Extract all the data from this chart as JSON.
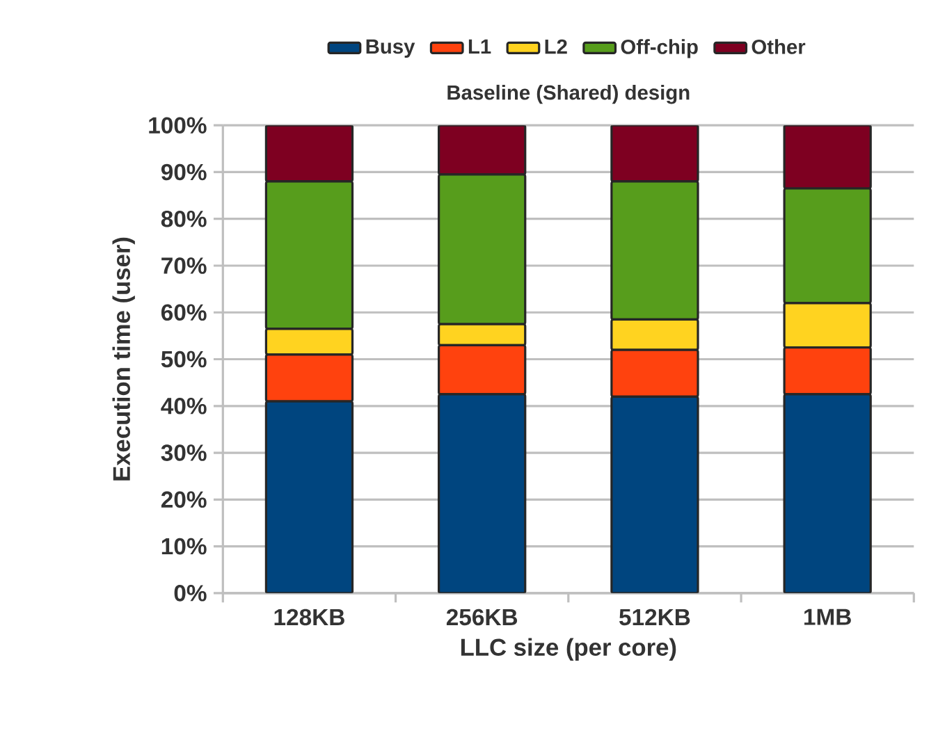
{
  "chart_data": {
    "type": "bar",
    "stacked": true,
    "title": "Baseline (Shared) design",
    "xlabel": "LLC size (per core)",
    "ylabel": "Execution time (user)",
    "categories": [
      "128KB",
      "256KB",
      "512KB",
      "1MB"
    ],
    "series": [
      {
        "name": "Busy",
        "color": "#00457f",
        "values": [
          41,
          42.5,
          42,
          42.5
        ]
      },
      {
        "name": "L1",
        "color": "#ff420e",
        "values": [
          10,
          10.5,
          10,
          10
        ]
      },
      {
        "name": "L2",
        "color": "#ffd320",
        "values": [
          5.5,
          4.5,
          6.5,
          9.5
        ]
      },
      {
        "name": "Off-chip",
        "color": "#579d1c",
        "values": [
          31.5,
          32,
          29.5,
          24.5
        ]
      },
      {
        "name": "Other",
        "color": "#7e0021",
        "values": [
          12,
          10.5,
          12,
          13.5
        ]
      }
    ],
    "ylim": [
      0,
      100
    ],
    "yticks": [
      {
        "value": 0,
        "label": "0%"
      },
      {
        "value": 10,
        "label": "10%"
      },
      {
        "value": 20,
        "label": "20%"
      },
      {
        "value": 30,
        "label": "30%"
      },
      {
        "value": 40,
        "label": "40%"
      },
      {
        "value": 50,
        "label": "50%"
      },
      {
        "value": 60,
        "label": "60%"
      },
      {
        "value": 70,
        "label": "70%"
      },
      {
        "value": 80,
        "label": "80%"
      },
      {
        "value": 90,
        "label": "90%"
      },
      {
        "value": 100,
        "label": "100%"
      }
    ],
    "grid": "y",
    "legend": "top"
  }
}
